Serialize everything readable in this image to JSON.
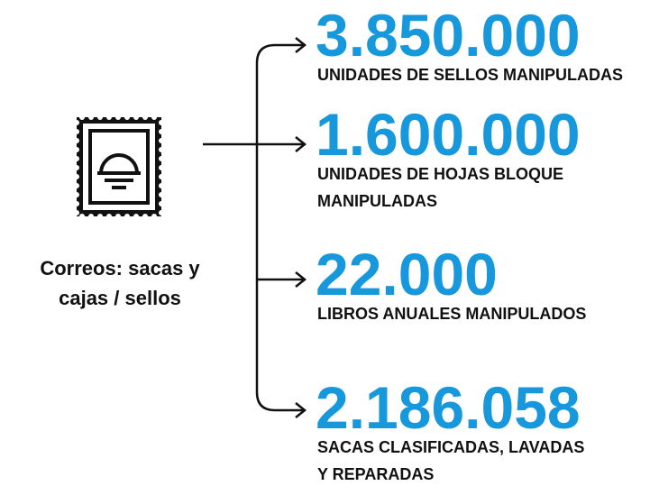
{
  "label": [
    "Correos: sacas y",
    "cajas / sellos"
  ],
  "items": [
    {
      "value": "3.850.000",
      "description": [
        "UNIDADES DE SELLOS MANIPULADAS"
      ]
    },
    {
      "value": "1.600.000",
      "description": [
        "UNIDADES DE HOJAS BLOQUE",
        "MANIPULADAS"
      ]
    },
    {
      "value": "22.000",
      "description": [
        "LIBROS ANUALES MANIPULADOS"
      ]
    },
    {
      "value": "2.186.058",
      "description": [
        "SACAS CLASIFICADAS, LAVADAS",
        "Y REPARADAS"
      ]
    }
  ]
}
